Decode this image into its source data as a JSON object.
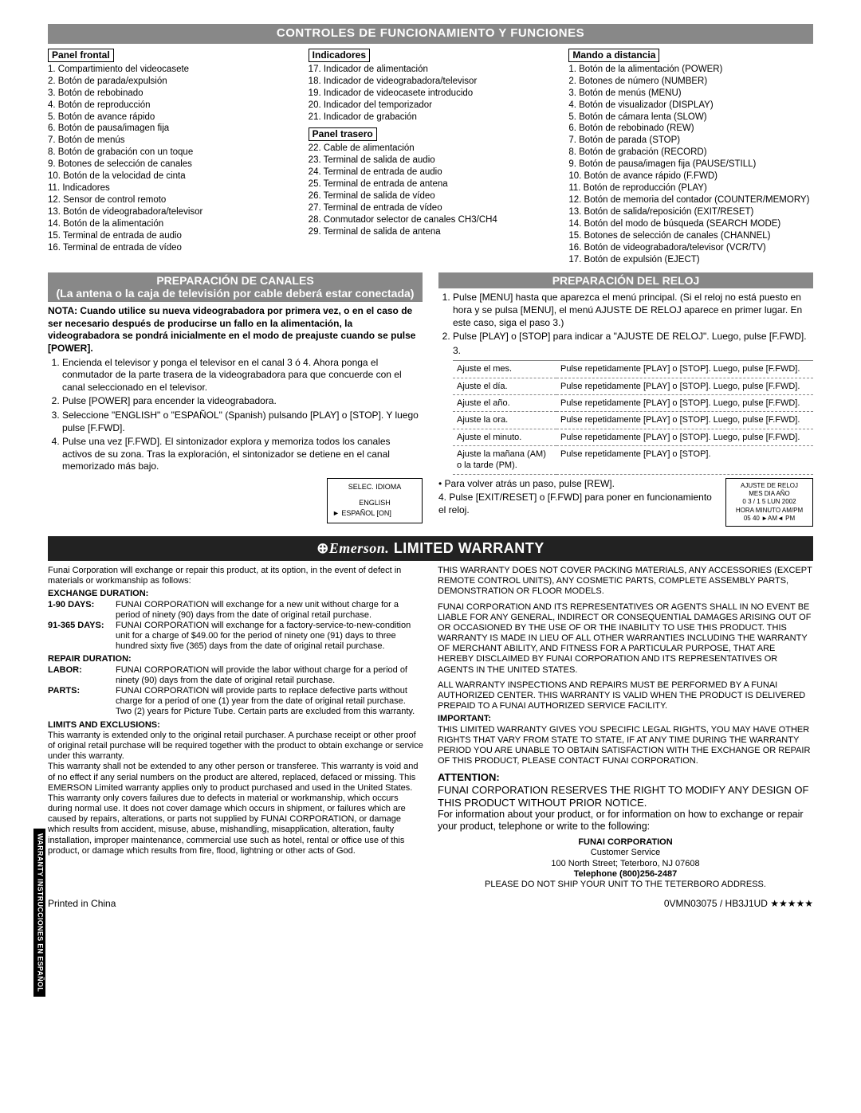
{
  "controls": {
    "title": "CONTROLES DE FUNCIONAMIENTO Y FUNCIONES",
    "panel_frontal": {
      "head": "Panel frontal",
      "items": [
        "1. Compartimiento del videocasete",
        "2. Botón de parada/expulsión",
        "3. Botón de rebobinado",
        "4. Botón de reproducción",
        "5. Botón de avance rápido",
        "6. Botón de pausa/imagen fija",
        "7. Botón de menús",
        "8. Botón de grabación con un toque",
        "9. Botones de selección de canales",
        "10. Botón de la velocidad de cinta",
        "11. Indicadores",
        "12. Sensor de control remoto",
        "13. Botón de videograbadora/televisor",
        "14. Botón de la alimentación",
        "15. Terminal de entrada de audio",
        "16. Terminal de entrada de vídeo"
      ]
    },
    "indicadores": {
      "head": "Indicadores",
      "items": [
        "17. Indicador de alimentación",
        "18. Indicador de videograbadora/televisor",
        "19. Indicador de videocasete introducido",
        "20. Indicador del temporizador",
        "21. Indicador de grabación"
      ]
    },
    "panel_trasero": {
      "head": "Panel trasero",
      "items": [
        "22. Cable de alimentación",
        "23. Terminal de salida de audio",
        "24. Terminal de entrada de audio",
        "25. Terminal de entrada de antena",
        "26. Terminal de salida de vídeo",
        "27. Terminal de entrada de vídeo",
        "28. Conmutador selector de canales CH3/CH4",
        "29. Terminal de salida de antena"
      ]
    },
    "mando": {
      "head": "Mando a distancia",
      "items": [
        "1. Botón de la alimentación (POWER)",
        "2. Botones de número (NUMBER)",
        "3. Botón de menús (MENU)",
        "4. Botón de visualizador (DISPLAY)",
        "5. Botón de cámara lenta (SLOW)",
        "6. Botón de rebobinado (REW)",
        "7. Botón de parada (STOP)",
        "8. Botón de grabación (RECORD)",
        "9. Botón de pausa/imagen fija (PAUSE/STILL)",
        "10. Botón de avance rápido (F.FWD)",
        "11. Botón de reproducción (PLAY)",
        "12. Botón de memoria del contador (COUNTER/MEMORY)",
        "13. Botón de salida/reposición (EXIT/RESET)",
        "14. Botón del modo de búsqueda (SEARCH MODE)",
        "15. Botones de selección de canales (CHANNEL)",
        "16. Botón de videograbadora/televisor (VCR/TV)",
        "17. Botón de expulsión (EJECT)"
      ]
    }
  },
  "prep_canales": {
    "title": "PREPARACIÓN DE CANALES",
    "subtitle": "(La antena o la caja de televisión por cable deberá estar conectada)",
    "nota": "NOTA: Cuando utilice su nueva videograbadora por primera vez, o en el caso de ser necesario después de producirse un fallo en la alimentación, la videograbadora se pondrá inicialmente en el modo de preajuste cuando se pulse [POWER].",
    "steps": [
      "Encienda el televisor y ponga el televisor en el canal 3 ó 4. Ahora ponga el conmutador de la parte trasera de la videograbadora para que concuerde con el canal seleccionado en el televisor.",
      "Pulse [POWER] para encender la videograbadora.",
      "Seleccione \"ENGLISH\" o \"ESPAÑOL\" (Spanish) pulsando [PLAY] o [STOP]. Y luego pulse [F.FWD].",
      "Pulse una vez [F.FWD]. El sintonizador explora y memoriza todos los canales activos de su zona. Tras la exploración, el sintonizador se detiene en el canal memorizado más bajo."
    ],
    "langbox": {
      "title": "SELEC. IDIOMA",
      "l1": "ENGLISH",
      "l2": "► ESPAÑOL      [ON]"
    }
  },
  "prep_reloj": {
    "title": "PREPARACIÓN DEL RELOJ",
    "steps_pre": [
      "Pulse [MENU] hasta que aparezca el menú principal. (Si el reloj no está puesto en hora y se pulsa [MENU], el menú AJUSTE DE RELOJ aparece en primer lugar. En este caso, siga el paso 3.)",
      "Pulse [PLAY] o [STOP] para indicar a \"AJUSTE DE RELOJ\". Luego, pulse [F.FWD]."
    ],
    "table": [
      [
        "Ajuste el mes.",
        "Pulse repetidamente [PLAY] o [STOP]. Luego, pulse [F.FWD]."
      ],
      [
        "Ajuste el día.",
        "Pulse repetidamente [PLAY] o [STOP]. Luego, pulse [F.FWD]."
      ],
      [
        "Ajuste el año.",
        "Pulse repetidamente [PLAY] o [STOP]. Luego, pulse [F.FWD]."
      ],
      [
        "Ajuste la ora.",
        "Pulse repetidamente [PLAY] o [STOP]. Luego, pulse [F.FWD]."
      ],
      [
        "Ajuste el minuto.",
        "Pulse repetidamente [PLAY] o [STOP]. Luego, pulse [F.FWD]."
      ],
      [
        "Ajuste la mañana (AM) o la tarde (PM).",
        "Pulse repetidamente [PLAY] o [STOP]."
      ]
    ],
    "clockbox": {
      "t": "AJUSTE DE RELOJ",
      "l1": "MES   DIA   AÑO",
      "l2": "0 3  /  1 5   LUN  2002",
      "l3": "HORA  MINUTO  AM/PM",
      "l4": "05      40      ►AM◄ PM"
    },
    "post": [
      "• Para volver atrás un paso, pulse [REW].",
      "4. Pulse [EXIT/RESET] o [F.FWD] para poner en funcionamiento el reloj."
    ]
  },
  "warranty": {
    "title_prefix": "Emerson.",
    "title": " LIMITED WARRANTY",
    "left": {
      "intro": "Funai Corporation will exchange or repair this product, at its option, in the event of defect in materials or workmanship as follows:",
      "exch_head": "EXCHANGE DURATION:",
      "r1l": "1-90 DAYS:",
      "r1t": "FUNAI CORPORATION will exchange for a new unit without charge for a period of ninety (90) days from the date of original retail purchase.",
      "r2l": "91-365 DAYS:",
      "r2t": "FUNAI CORPORATION will exchange for a factory-service-to-new-condition unit for a charge of $49.00 for the period of ninety one (91) days to three hundred sixty five (365) days from the date of original retail purchase.",
      "rep_head": "REPAIR DURATION:",
      "r3l": "LABOR:",
      "r3t": "FUNAI CORPORATION will provide the labor without charge for a period of ninety (90) days from the date of original retail purchase.",
      "r4l": "PARTS:",
      "r4t": "FUNAI CORPORATION will provide parts to replace defective parts without charge for a period of one (1) year from the date of original retail purchase. Two (2) years for Picture Tube. Certain parts are excluded from this warranty.",
      "lim_head": "LIMITS AND EXCLUSIONS:",
      "p1": "This warranty is extended only to the original retail purchaser. A purchase receipt or other proof of original retail purchase will be required together with the product to obtain exchange or service under this warranty.",
      "p2": "This warranty shall not be extended to any other person or transferee. This warranty is void and of no effect if any serial numbers on the product are altered, replaced, defaced or missing. This EMERSON Limited warranty applies only to product purchased and used in the United States.",
      "p3": "This warranty only covers failures due to defects in material or workmanship, which occurs during normal use. It does not cover damage which occurs in shipment, or failures which are caused by repairs, alterations, or parts not supplied by FUNAI CORPORATION, or damage which results from accident, misuse, abuse, mishandling, misapplication, alteration, faulty installation, improper maintenance, commercial use such as hotel, rental or office use of this product, or damage which results from fire, flood, lightning or other acts of God."
    },
    "right": {
      "p1": "THIS WARRANTY DOES NOT COVER PACKING MATERIALS, ANY ACCESSORIES (EXCEPT REMOTE CONTROL UNITS), ANY COSMETIC PARTS, COMPLETE ASSEMBLY PARTS, DEMONSTRATION OR FLOOR MODELS.",
      "p2": "FUNAI CORPORATION AND ITS REPRESENTATIVES OR AGENTS SHALL IN NO EVENT BE LIABLE FOR ANY GENERAL, INDIRECT OR CONSEQUENTIAL DAMAGES ARISING OUT OF OR OCCASIONED BY THE USE OF OR THE INABILITY TO USE THIS PRODUCT. THIS WARRANTY IS MADE IN LIEU OF ALL OTHER WARRANTIES INCLUDING THE WARRANTY OF MERCHANT ABILITY, AND FITNESS FOR A PARTICULAR PURPOSE, THAT ARE HEREBY DISCLAIMED BY FUNAI CORPORATION AND ITS REPRESENTATIVES OR AGENTS IN THE UNITED STATES.",
      "p3": "ALL WARRANTY INSPECTIONS AND REPAIRS MUST BE PERFORMED BY A FUNAI AUTHORIZED CENTER. THIS WARRANTY IS VALID WHEN THE PRODUCT IS DELIVERED PREPAID TO A FUNAI AUTHORIZED SERVICE FACILITY.",
      "imp_head": "IMPORTANT:",
      "p4": "THIS LIMITED WARRANTY GIVES YOU SPECIFIC LEGAL RIGHTS, YOU MAY HAVE OTHER RIGHTS THAT VARY FROM STATE TO STATE, IF AT ANY TIME DURING THE WARRANTY PERIOD YOU ARE UNABLE TO OBTAIN SATISFACTION WITH THE EXCHANGE OR REPAIR OF THIS PRODUCT, PLEASE CONTACT FUNAI CORPORATION.",
      "attn_head": "ATTENTION:",
      "attn": "FUNAI CORPORATION RESERVES THE RIGHT TO MODIFY ANY DESIGN OF THIS PRODUCT WITHOUT PRIOR NOTICE.",
      "info": "For information about your product, or for information on how to exchange or repair your product, telephone or write to the following:",
      "corp": "FUNAI CORPORATION",
      "cs": "Customer Service",
      "addr": "100 North Street; Teterboro, NJ 07608",
      "tel": "Telephone (800)256-2487",
      "noship": "PLEASE DO NOT SHIP YOUR UNIT TO THE TETERBORO ADDRESS."
    }
  },
  "sidetab": "WARRANTY  INSTRUCCIONES EN ESPAÑOL",
  "footer": {
    "left": "Printed in China",
    "right": "0VMN03075 / HB3J1UD ★★★★★"
  }
}
